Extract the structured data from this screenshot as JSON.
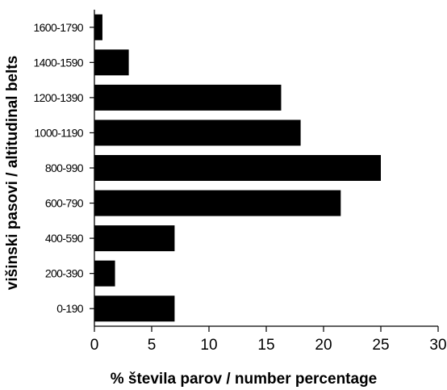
{
  "chart_data": {
    "type": "bar",
    "orientation": "horizontal",
    "title": "",
    "xlabel": "% števila parov / number percentage",
    "ylabel": "višinski pasovi / altitudinal belts",
    "categories": [
      "0-190",
      "200-390",
      "400-590",
      "600-790",
      "800-990",
      "1000-1190",
      "1200-1390",
      "1400-1590",
      "1600-1790"
    ],
    "values": [
      7.0,
      1.8,
      7.0,
      21.5,
      25.0,
      18.0,
      16.3,
      3.0,
      0.7
    ],
    "xlim": [
      0,
      30
    ],
    "xticks": [
      0,
      5,
      10,
      15,
      20,
      25,
      30
    ],
    "grid": false,
    "legend": "none",
    "bar_color": "#000000"
  }
}
